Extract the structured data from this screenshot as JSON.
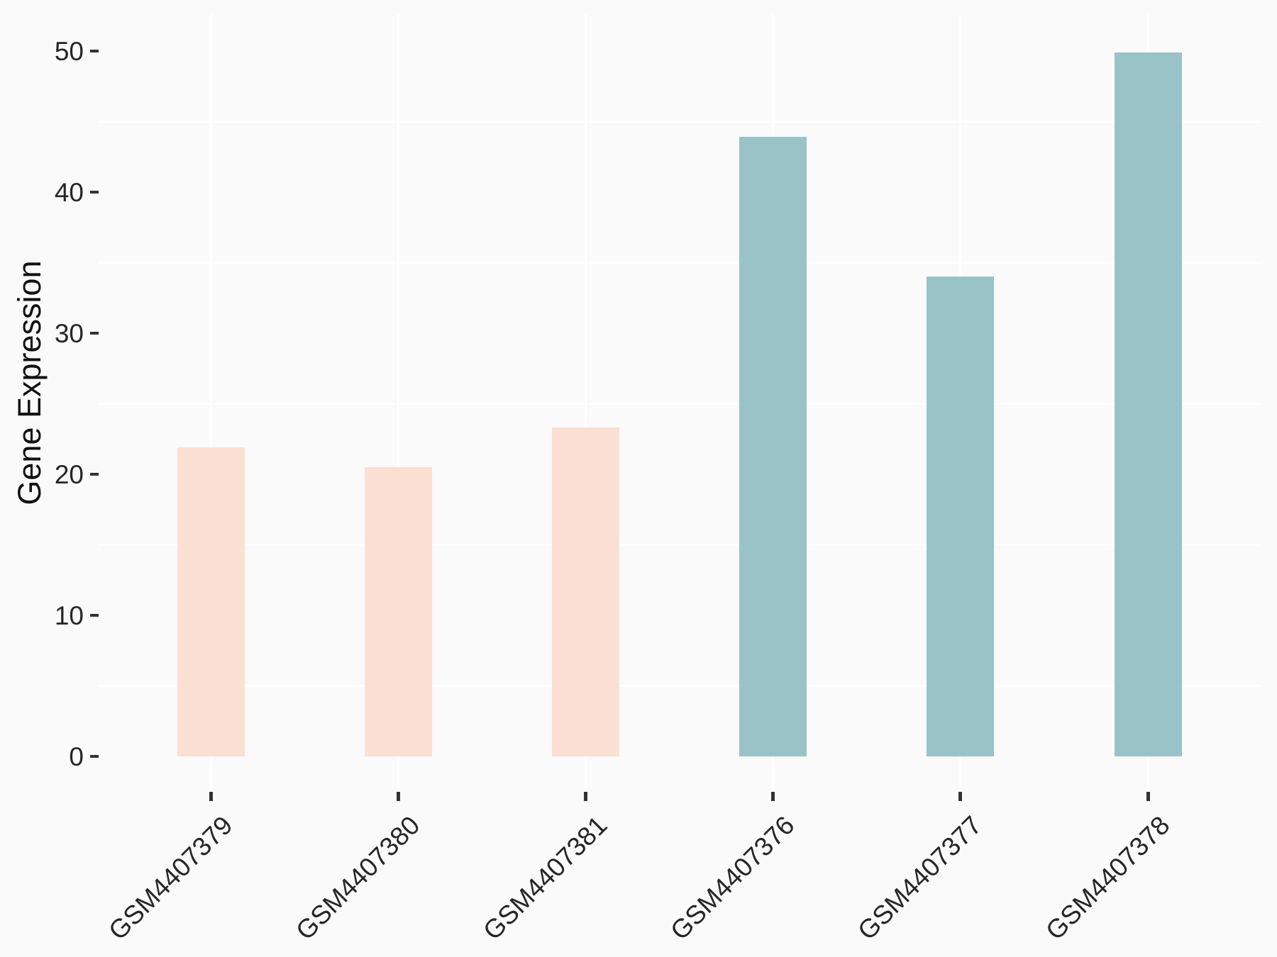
{
  "chart_data": {
    "type": "bar",
    "title": "",
    "xlabel": "",
    "ylabel": "Gene Expression",
    "categories": [
      "GSM4407379",
      "GSM4407380",
      "GSM4407381",
      "GSM4407376",
      "GSM4407377",
      "GSM4407378"
    ],
    "series": [
      {
        "name": "Gene Expression",
        "values": [
          21.9,
          20.5,
          23.3,
          43.9,
          34.0,
          49.9
        ]
      }
    ],
    "bar_groups": [
      "group-A",
      "group-A",
      "group-A",
      "group-B",
      "group-B",
      "group-B"
    ],
    "bar_colors": [
      "#FCDFD3",
      "#FCDFD3",
      "#FCDFD3",
      "#9AC3C7",
      "#9AC3C7",
      "#9AC3C7"
    ],
    "y_ticks": [
      0,
      10,
      20,
      30,
      40,
      50
    ],
    "y_minor_gridlines": [
      5,
      15,
      25,
      35,
      45
    ],
    "ylim": [
      -2.5,
      52.5
    ],
    "grid": {
      "horizontal_minor": true,
      "horizontal_major": false,
      "vertical_major_at_categories": true,
      "gridline_color": "#FFFFFF"
    },
    "legend_position": "none",
    "colors": {
      "background": "#FAFAFA",
      "gridline": "#FFFFFF",
      "axis_tick": "#333333",
      "tick_label_text": "#262626",
      "axis_title_text": "#111111",
      "bar_pink": "#FCDFD3",
      "bar_teal": "#9AC3C7"
    }
  }
}
